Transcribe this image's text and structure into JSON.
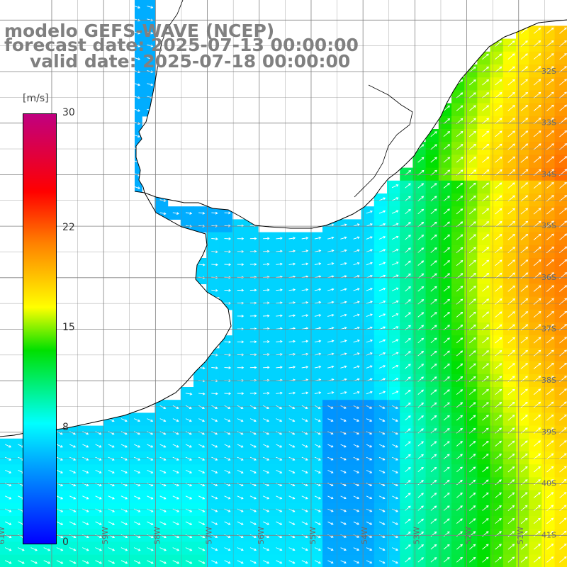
{
  "title": {
    "model": "modelo GEFS-WAVE (NCEP)",
    "forecast": "forecast date: 2025-07-13 00:00:00",
    "valid": "valid date: 2025-07-18 00:00:00"
  },
  "colorbar": {
    "unit": "[m/s]",
    "ticks": [
      "0",
      "8",
      "15",
      "22",
      "30"
    ],
    "tick_values": [
      0,
      8,
      15,
      22,
      30
    ],
    "stops": [
      "#0000ff",
      "#00a0ff",
      "#00ffff",
      "#00e000",
      "#ffff00",
      "#ff8000",
      "#ff0000",
      "#c00080"
    ]
  },
  "map": {
    "lat_labels": [
      "32S",
      "33S",
      "34S",
      "35S",
      "36S",
      "37S",
      "38S",
      "39S",
      "40S",
      "41S"
    ],
    "lon_labels": [
      "61W",
      "60W",
      "59W",
      "58W",
      "57W",
      "56W",
      "55W",
      "54W",
      "53W",
      "52W",
      "51W"
    ],
    "land_color": "#ffffff",
    "grid_color": "#808080",
    "coast_color": "#000000",
    "arrow_color": "#ffffff"
  }
}
